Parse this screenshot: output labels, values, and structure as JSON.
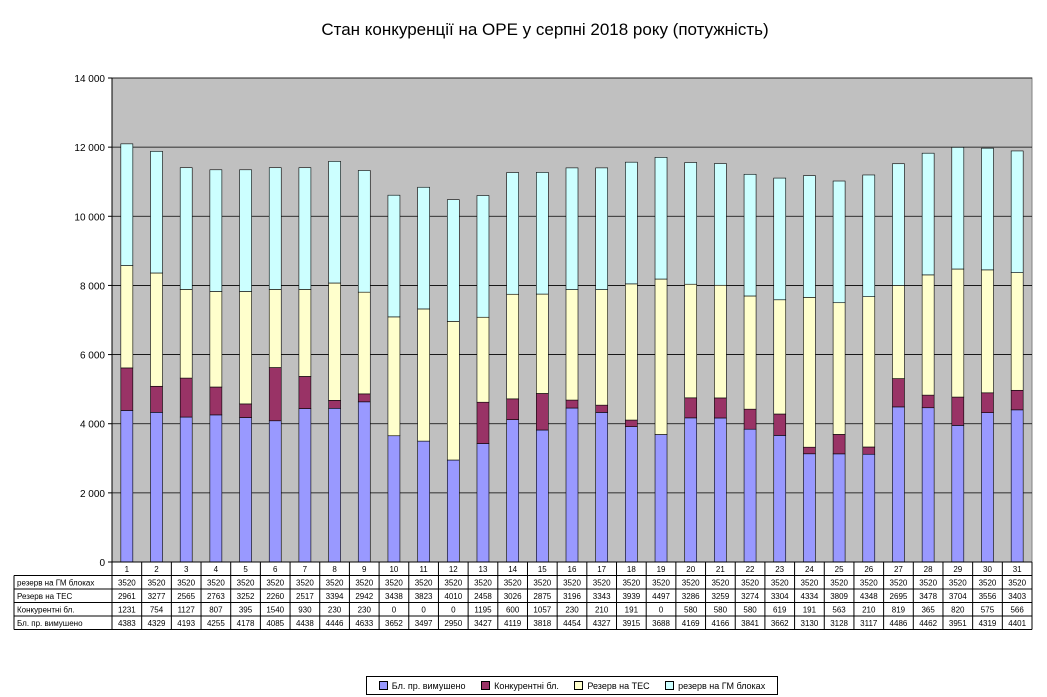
{
  "chart_data": {
    "type": "bar",
    "stacked": true,
    "title": "Стан конкуренції на ОРЕ  у серпні 2018 року (потужність)",
    "categories": [
      "1",
      "2",
      "3",
      "4",
      "5",
      "6",
      "7",
      "8",
      "9",
      "10",
      "11",
      "12",
      "13",
      "14",
      "15",
      "16",
      "17",
      "18",
      "19",
      "20",
      "21",
      "22",
      "23",
      "24",
      "25",
      "26",
      "27",
      "28",
      "29",
      "30",
      "31"
    ],
    "ylim": [
      0,
      14000
    ],
    "yticks": [
      "0",
      "2 000",
      "4 000",
      "6 000",
      "8 000",
      "10 000",
      "12 000",
      "14 000"
    ],
    "ytick_values": [
      0,
      2000,
      4000,
      6000,
      8000,
      10000,
      12000,
      14000
    ],
    "grid": true,
    "legend_position": "bottom",
    "series": [
      {
        "name": "Бл. пр. вимушено",
        "color": "#9999ff",
        "values": [
          4383,
          4329,
          4193,
          4255,
          4178,
          4085,
          4438,
          4446,
          4633,
          3652,
          3497,
          2950,
          3427,
          4119,
          3818,
          4454,
          4327,
          3915,
          3688,
          4169,
          4166,
          3841,
          3662,
          3130,
          3128,
          3117,
          4486,
          4462,
          3951,
          4319,
          4401
        ]
      },
      {
        "name": "Конкурентні бл.",
        "color": "#993366",
        "values": [
          1231,
          754,
          1127,
          807,
          395,
          1540,
          930,
          230,
          230,
          0,
          0,
          0,
          1195,
          600,
          1057,
          230,
          210,
          191,
          0,
          580,
          580,
          580,
          619,
          191,
          563,
          210,
          819,
          365,
          820,
          575,
          566
        ]
      },
      {
        "name": "Резерв на ТЕС",
        "color": "#ffffcc",
        "values": [
          2961,
          3277,
          2565,
          2763,
          3252,
          2260,
          2517,
          3394,
          2942,
          3438,
          3823,
          4010,
          2458,
          3026,
          2875,
          3196,
          3343,
          3939,
          4497,
          3286,
          3259,
          3274,
          3304,
          4334,
          3809,
          4348,
          2695,
          3478,
          3704,
          3556,
          3403
        ]
      },
      {
        "name": "резерв на ГМ блоках",
        "color": "#ccffff",
        "values": [
          3520,
          3520,
          3520,
          3520,
          3520,
          3520,
          3520,
          3520,
          3520,
          3520,
          3520,
          3520,
          3520,
          3520,
          3520,
          3520,
          3520,
          3520,
          3520,
          3520,
          3520,
          3520,
          3520,
          3520,
          3520,
          3520,
          3520,
          3520,
          3520,
          3520,
          3520
        ]
      }
    ],
    "table_rows": [
      {
        "label": "резерв на ГМ блоках",
        "series": 3
      },
      {
        "label": "Резерв на ТЕС",
        "series": 2
      },
      {
        "label": "Конкурентні бл.",
        "series": 1
      },
      {
        "label": "Бл. пр. вимушено",
        "series": 0
      }
    ],
    "plot_background": "#c0c0c0"
  }
}
